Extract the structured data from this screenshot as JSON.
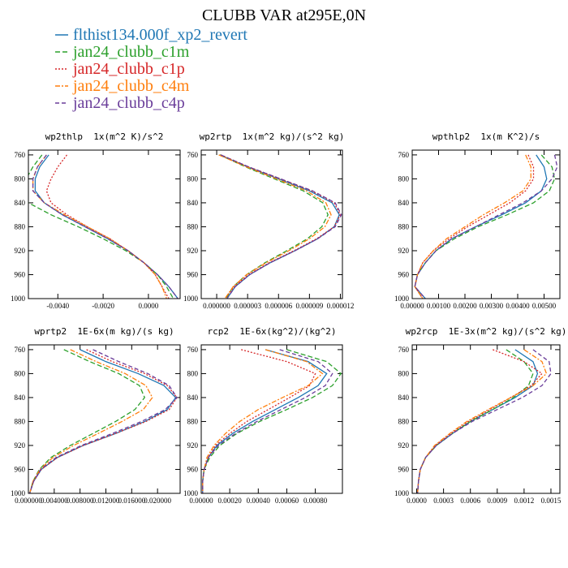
{
  "title": "CLUBB VAR at295E,0N",
  "series": [
    {
      "name": "flthist134.000f_xp2_revert",
      "color": "#1f77b4",
      "dash": "none"
    },
    {
      "name": "jan24_clubb_c1m",
      "color": "#2ca02c",
      "dash": "6 3"
    },
    {
      "name": "jan24_clubb_c1p",
      "color": "#d62728",
      "dash": "2 2"
    },
    {
      "name": "jan24_clubb_c4m",
      "color": "#ff7f0e",
      "dash": "6 2 2 2"
    },
    {
      "name": "jan24_clubb_c4p",
      "color": "#6a3d9a",
      "dash": "5 3"
    }
  ],
  "chart_data": [
    {
      "type": "line",
      "title": "wp2thlp  1x(m^2 K)/s^2",
      "y": [
        760,
        780,
        800,
        820,
        840,
        860,
        880,
        900,
        920,
        940,
        960,
        980,
        1000
      ],
      "ylim": [
        1000,
        752
      ],
      "yticks": [
        760,
        800,
        840,
        880,
        920,
        960,
        1000
      ],
      "xlim": [
        -0.0053,
        0.0014
      ],
      "xticks": [
        {
          "value": -0.004,
          "label": "-0.0040"
        },
        {
          "value": -0.002,
          "label": "-0.0020"
        },
        {
          "value": 0,
          "label": "0.0000"
        }
      ],
      "series": [
        {
          "values": [
            -0.0044,
            -0.0048,
            -0.005,
            -0.005,
            -0.0046,
            -0.0038,
            -0.0028,
            -0.0018,
            -0.0009,
            -0.0002,
            0.0004,
            0.0009,
            0.0013
          ]
        },
        {
          "values": [
            -0.0047,
            -0.0051,
            -0.0054,
            -0.0056,
            -0.0053,
            -0.0043,
            -0.0031,
            -0.002,
            -0.001,
            -0.0002,
            0.0004,
            0.0008,
            0.0011
          ]
        },
        {
          "values": [
            -0.0036,
            -0.004,
            -0.0043,
            -0.0045,
            -0.0043,
            -0.0036,
            -0.0027,
            -0.0017,
            -0.0009,
            -0.0002,
            0.0003,
            0.0006,
            0.0009
          ]
        },
        {
          "values": [
            -0.0045,
            -0.0049,
            -0.0051,
            -0.0051,
            -0.0046,
            -0.0037,
            -0.0027,
            -0.0017,
            -0.0009,
            -0.0002,
            0.0003,
            0.0006,
            0.0008
          ]
        },
        {
          "values": [
            -0.0045,
            -0.0049,
            -0.0051,
            -0.0051,
            -0.0046,
            -0.0038,
            -0.0028,
            -0.0018,
            -0.0009,
            -0.0002,
            0.0004,
            0.0009,
            0.0013
          ]
        }
      ]
    },
    {
      "type": "line",
      "title": "wp2rtp  1x(m^2 kg)/(s^2 kg)",
      "y": [
        760,
        780,
        800,
        820,
        840,
        860,
        880,
        900,
        920,
        940,
        960,
        980,
        1000
      ],
      "ylim": [
        1000,
        752
      ],
      "yticks": [
        760,
        800,
        840,
        880,
        920,
        960,
        1000
      ],
      "xlim": [
        -1.5e-06,
        1.22e-05
      ],
      "xticks": [
        {
          "value": 0,
          "label": "0.000000"
        },
        {
          "value": 3e-06,
          "label": "0.000003"
        },
        {
          "value": 6e-06,
          "label": "0.000006"
        },
        {
          "value": 9e-06,
          "label": "0.000009"
        },
        {
          "value": 1.2e-05,
          "label": "0.000012"
        }
      ],
      "series": [
        {
          "values": [
            3e-07,
            3e-06,
            6e-06,
            9e-06,
            1.12e-05,
            1.19e-05,
            1.14e-05,
            9.8e-06,
            7.6e-06,
            5.2e-06,
            3.2e-06,
            1.8e-06,
            1e-06
          ]
        },
        {
          "values": [
            3e-07,
            2.8e-06,
            5.6e-06,
            8.4e-06,
            1.03e-05,
            1.08e-05,
            1.02e-05,
            8.8e-06,
            6.8e-06,
            4.7e-06,
            2.9e-06,
            1.6e-06,
            9e-07
          ]
        },
        {
          "values": [
            4e-07,
            3.1e-06,
            6.2e-06,
            9.2e-06,
            1.14e-05,
            1.2e-05,
            1.14e-05,
            9.7e-06,
            7.5e-06,
            5.1e-06,
            3.1e-06,
            1.7e-06,
            8e-07
          ]
        },
        {
          "values": [
            2e-07,
            2.9e-06,
            5.8e-06,
            8.7e-06,
            1.06e-05,
            1.11e-05,
            1.05e-05,
            9e-06,
            7e-06,
            4.8e-06,
            2.9e-06,
            1.6e-06,
            8e-07
          ]
        },
        {
          "values": [
            4e-07,
            3.1e-06,
            6.2e-06,
            9.3e-06,
            1.15e-05,
            1.21e-05,
            1.15e-05,
            9.8e-06,
            7.6e-06,
            5.2e-06,
            3.2e-06,
            1.8e-06,
            1e-06
          ]
        }
      ]
    },
    {
      "type": "line",
      "title": "wpthlp2  1x(m K^2)/s",
      "y": [
        760,
        780,
        800,
        820,
        840,
        860,
        880,
        900,
        920,
        940,
        960,
        980,
        1000
      ],
      "ylim": [
        1000,
        752
      ],
      "yticks": [
        760,
        800,
        840,
        880,
        920,
        960,
        1000
      ],
      "xlim": [
        0,
        0.0056
      ],
      "xticks": [
        {
          "value": 0,
          "label": "0.00000"
        },
        {
          "value": 0.001,
          "label": "0.00100"
        },
        {
          "value": 0.002,
          "label": "0.00200"
        },
        {
          "value": 0.003,
          "label": "0.00300"
        },
        {
          "value": 0.004,
          "label": "0.00400"
        },
        {
          "value": 0.005,
          "label": "0.00500"
        }
      ],
      "series": [
        {
          "values": [
            0.0047,
            0.005,
            0.0051,
            0.0049,
            0.0043,
            0.0034,
            0.0024,
            0.0015,
            0.0009,
            0.0005,
            0.0002,
            0.0001,
            0.0005
          ]
        },
        {
          "values": [
            0.0049,
            0.0053,
            0.0054,
            0.0052,
            0.0046,
            0.0036,
            0.0025,
            0.0016,
            0.0009,
            0.0005,
            0.0002,
            0.0001,
            0.0004
          ]
        },
        {
          "values": [
            0.0044,
            0.0046,
            0.0046,
            0.0043,
            0.0037,
            0.0029,
            0.0021,
            0.0014,
            0.0008,
            0.0004,
            0.0002,
            0.0001,
            0.0004
          ]
        },
        {
          "values": [
            0.0043,
            0.0045,
            0.0045,
            0.0042,
            0.0035,
            0.0027,
            0.002,
            0.0013,
            0.0008,
            0.0004,
            0.0002,
            0.0001,
            0.0004
          ]
        },
        {
          "values": [
            0.0054,
            0.0055,
            0.0053,
            0.0049,
            0.0042,
            0.0033,
            0.0024,
            0.0015,
            0.0009,
            0.0005,
            0.0002,
            0.0001,
            0.0005
          ]
        }
      ]
    },
    {
      "type": "line",
      "title": "wprtp2  1E-6x(m kg)/(s kg)",
      "y": [
        760,
        780,
        800,
        820,
        840,
        860,
        880,
        900,
        920,
        940,
        960,
        980,
        1000
      ],
      "ylim": [
        1000,
        752
      ],
      "yticks": [
        760,
        800,
        840,
        880,
        920,
        960,
        1000
      ],
      "xlim": [
        0,
        0.0235
      ],
      "xticks": [
        {
          "value": 0,
          "label": "0.000000"
        },
        {
          "value": 0.004,
          "label": "0.004000"
        },
        {
          "value": 0.008,
          "label": "0.008000"
        },
        {
          "value": 0.012,
          "label": "0.012000"
        },
        {
          "value": 0.016,
          "label": "0.016000"
        },
        {
          "value": 0.02,
          "label": "0.020000"
        }
      ],
      "series": [
        {
          "values": [
            0.008,
            0.012,
            0.017,
            0.021,
            0.0228,
            0.0215,
            0.018,
            0.0135,
            0.0085,
            0.0045,
            0.002,
            0.0008,
            0.0002
          ]
        },
        {
          "values": [
            0.0055,
            0.0095,
            0.014,
            0.0172,
            0.018,
            0.0165,
            0.0135,
            0.01,
            0.0065,
            0.0035,
            0.0017,
            0.0007,
            0.0002
          ]
        },
        {
          "values": [
            0.009,
            0.013,
            0.018,
            0.0215,
            0.023,
            0.0218,
            0.0182,
            0.0135,
            0.0085,
            0.0045,
            0.002,
            0.0008,
            0.0002
          ]
        },
        {
          "values": [
            0.0065,
            0.0105,
            0.015,
            0.0182,
            0.0192,
            0.0178,
            0.0145,
            0.0108,
            0.007,
            0.0038,
            0.0018,
            0.0007,
            0.0002
          ]
        },
        {
          "values": [
            0.01,
            0.014,
            0.0185,
            0.0218,
            0.023,
            0.0212,
            0.0175,
            0.013,
            0.0082,
            0.0043,
            0.0019,
            0.0008,
            0.0002
          ]
        }
      ]
    },
    {
      "type": "line",
      "title": "rcp2  1E-6x(kg^2)/(kg^2)",
      "y": [
        760,
        780,
        800,
        820,
        840,
        860,
        880,
        900,
        920,
        940,
        960,
        980,
        1000
      ],
      "ylim": [
        1000,
        752
      ],
      "yticks": [
        760,
        800,
        840,
        880,
        920,
        960,
        1000
      ],
      "xlim": [
        0,
        0.00099
      ],
      "xticks": [
        {
          "value": 0,
          "label": "0.00000"
        },
        {
          "value": 0.0002,
          "label": "0.00020"
        },
        {
          "value": 0.0004,
          "label": "0.00040"
        },
        {
          "value": 0.0006,
          "label": "0.00060"
        },
        {
          "value": 0.0008,
          "label": "0.00080"
        }
      ],
      "series": [
        {
          "values": [
            0.00045,
            0.00075,
            0.00088,
            0.00082,
            0.00068,
            0.00052,
            0.00036,
            0.00022,
            0.00011,
            5e-05,
            2e-05,
            1e-05,
            1e-05
          ]
        },
        {
          "values": [
            0.0006,
            0.00088,
            0.00098,
            0.00092,
            0.00078,
            0.0006,
            0.00041,
            0.00025,
            0.00013,
            6e-05,
            2e-05,
            1e-05,
            1e-05
          ]
        },
        {
          "values": [
            0.00028,
            0.0006,
            0.0008,
            0.00076,
            0.00062,
            0.00047,
            0.00032,
            0.0002,
            0.0001,
            5e-05,
            2e-05,
            1e-05,
            1e-05
          ]
        },
        {
          "values": [
            0.00045,
            0.00074,
            0.00085,
            0.00075,
            0.00057,
            0.0004,
            0.00027,
            0.00017,
            9e-05,
            4e-05,
            2e-05,
            1e-05,
            1e-05
          ]
        },
        {
          "values": [
            0.00055,
            0.00082,
            0.00092,
            0.00087,
            0.00073,
            0.00056,
            0.00039,
            0.00024,
            0.00012,
            5e-05,
            2e-05,
            1e-05,
            1e-05
          ]
        }
      ]
    },
    {
      "type": "line",
      "title": "wp2rcp  1E-3x(m^2 kg)/(s^2 kg)",
      "y": [
        760,
        780,
        800,
        820,
        840,
        860,
        880,
        900,
        920,
        940,
        960,
        980,
        1000
      ],
      "ylim": [
        1000,
        752
      ],
      "yticks": [
        760,
        800,
        840,
        880,
        920,
        960,
        1000
      ],
      "xlim": [
        -5e-05,
        0.0016
      ],
      "xticks": [
        {
          "value": 0,
          "label": "0.0000"
        },
        {
          "value": 0.0003,
          "label": "0.0003"
        },
        {
          "value": 0.0006,
          "label": "0.0006"
        },
        {
          "value": 0.0009,
          "label": "0.0009"
        },
        {
          "value": 0.0012,
          "label": "0.0012"
        },
        {
          "value": 0.0015,
          "label": "0.0015"
        }
      ],
      "series": [
        {
          "values": [
            0.0011,
            0.0013,
            0.00135,
            0.0013,
            0.0011,
            0.00085,
            0.0006,
            0.0004,
            0.00022,
            0.0001,
            4e-05,
            2e-05,
            1e-05
          ]
        },
        {
          "values": [
            0.001,
            0.0012,
            0.0013,
            0.00125,
            0.00108,
            0.00085,
            0.0006,
            0.0004,
            0.00022,
            0.0001,
            4e-05,
            2e-05,
            1e-05
          ]
        },
        {
          "values": [
            0.00085,
            0.0012,
            0.0014,
            0.00128,
            0.00105,
            0.00082,
            0.00058,
            0.00038,
            0.00021,
            0.0001,
            4e-05,
            2e-05,
            1e-05
          ]
        },
        {
          "values": [
            0.0012,
            0.0014,
            0.00145,
            0.0013,
            0.00105,
            0.0008,
            0.00056,
            0.00037,
            0.0002,
            0.0001,
            4e-05,
            2e-05,
            1e-05
          ]
        },
        {
          "values": [
            0.0013,
            0.00148,
            0.0015,
            0.0014,
            0.00118,
            0.0009,
            0.00062,
            0.0004,
            0.00022,
            0.0001,
            4e-05,
            2e-05,
            1e-05
          ]
        }
      ]
    }
  ]
}
